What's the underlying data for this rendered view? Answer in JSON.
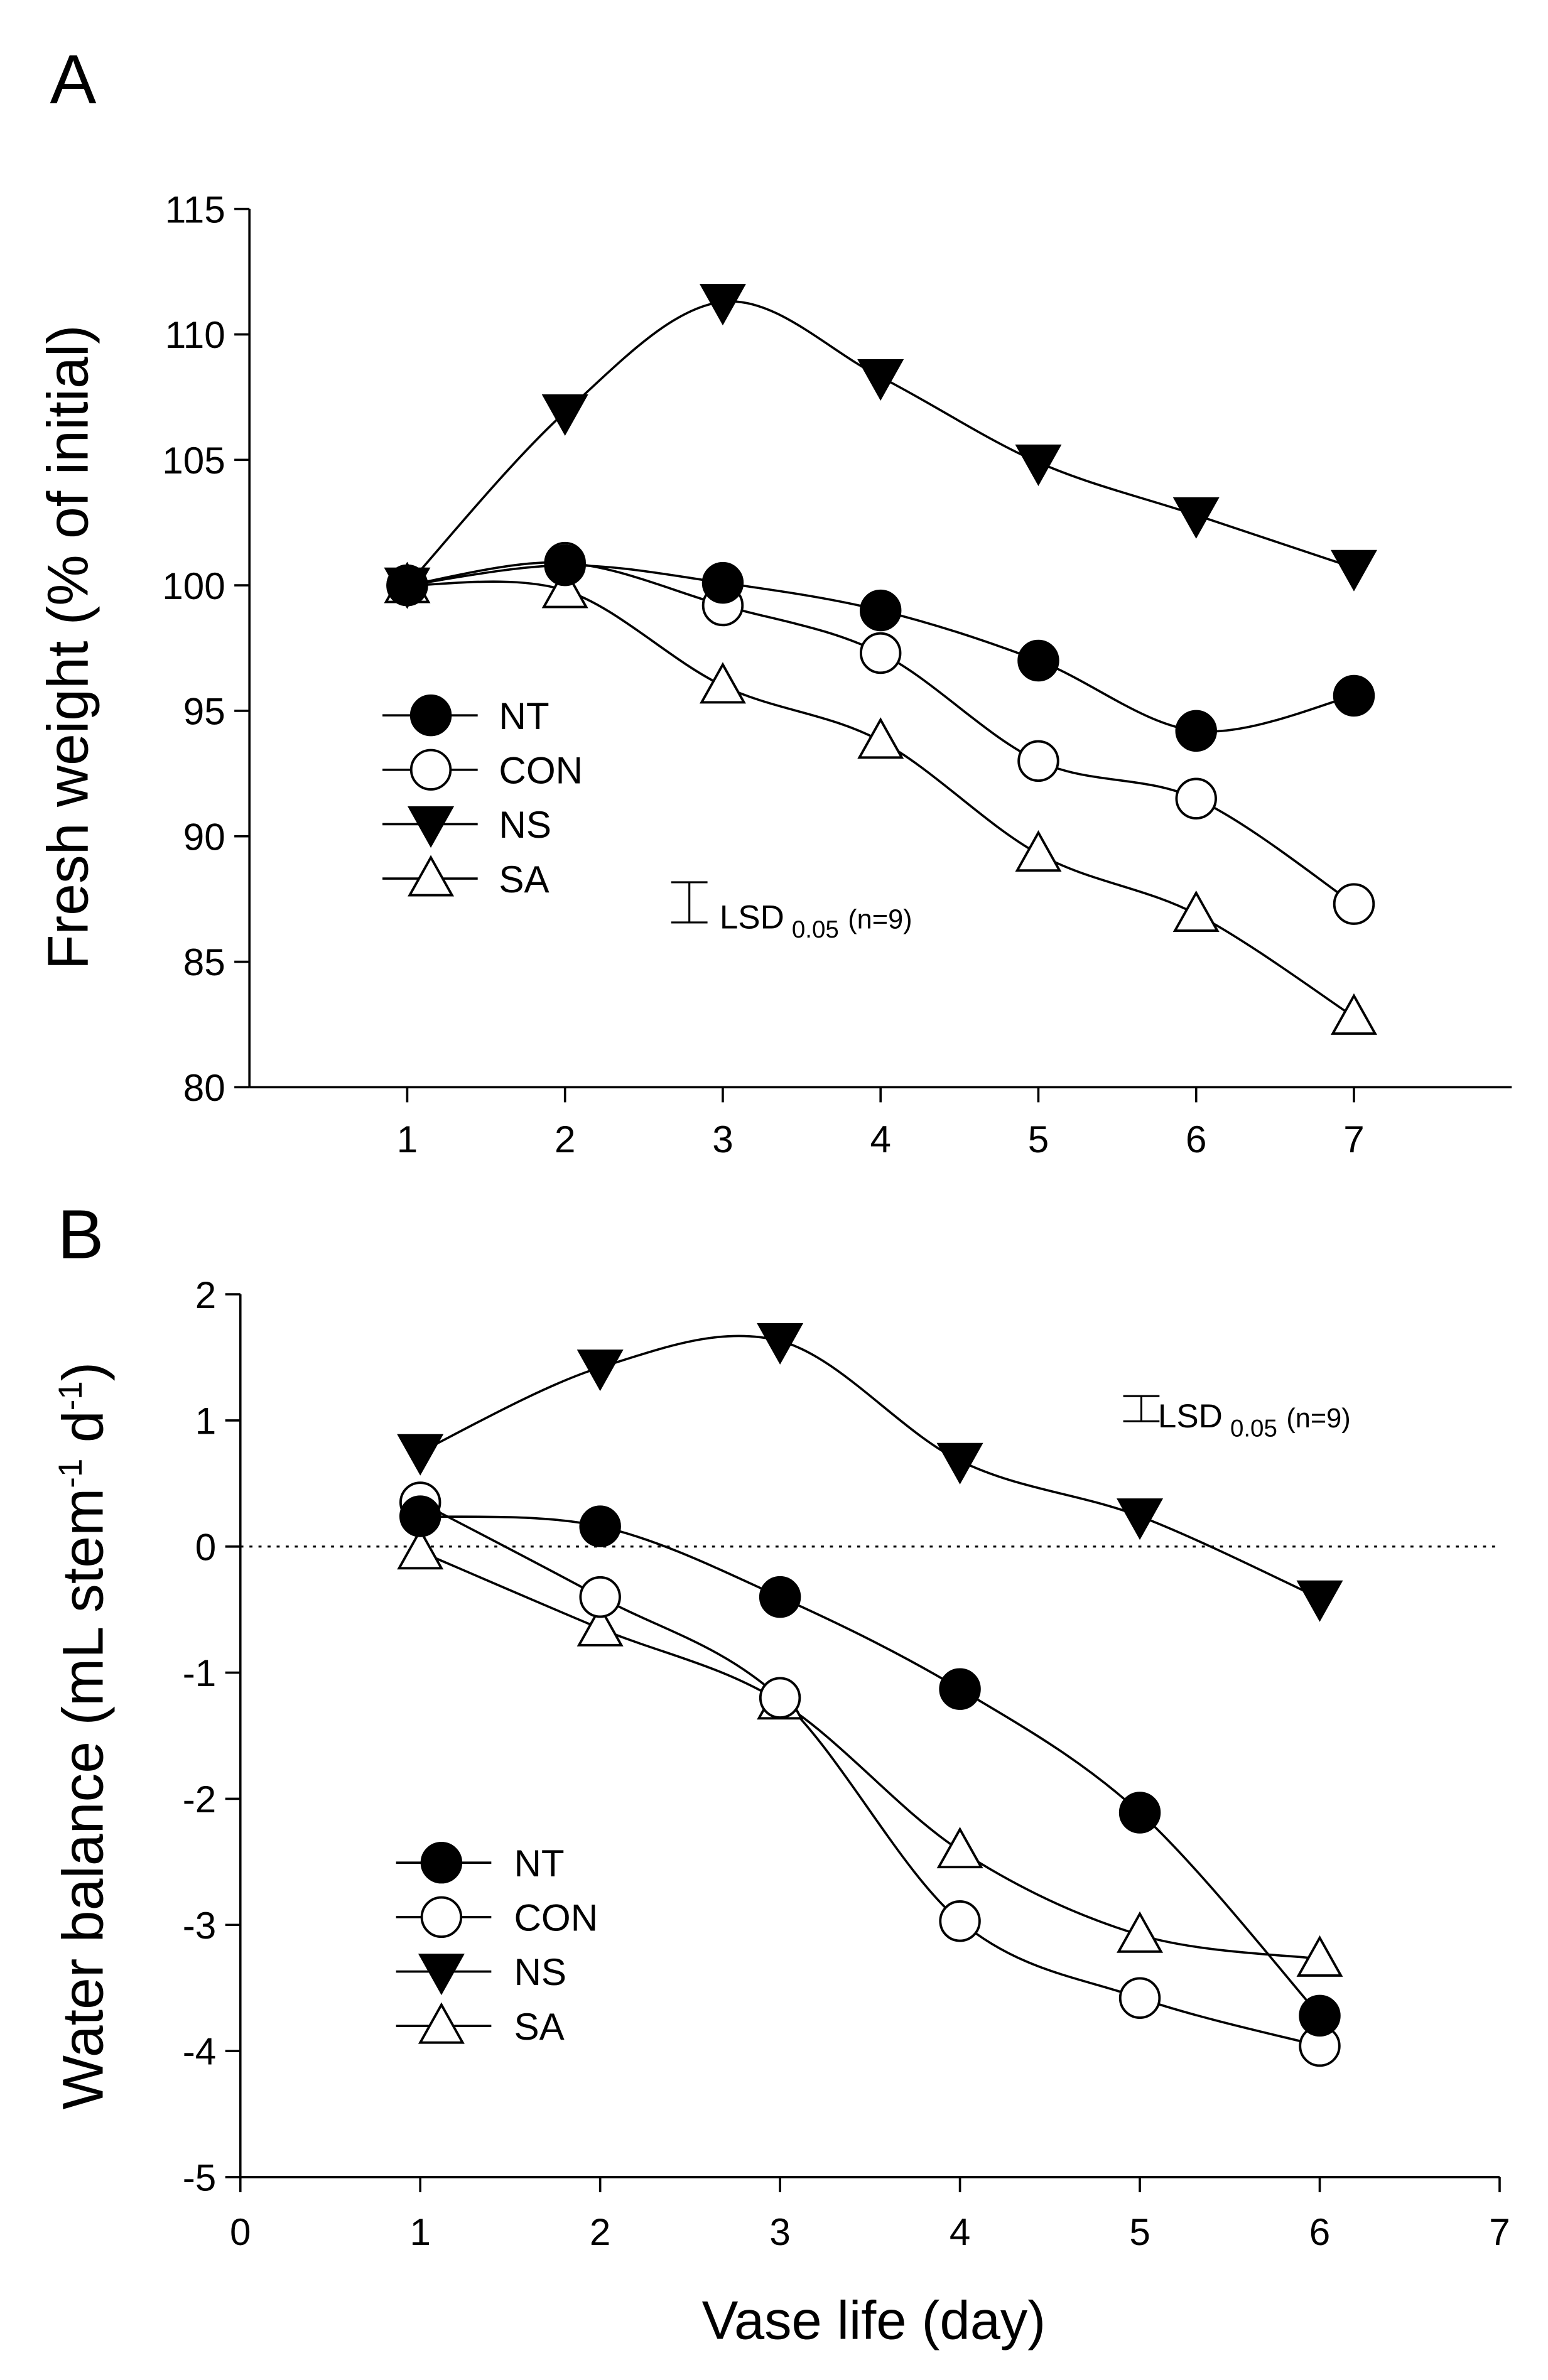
{
  "chart_data": [
    {
      "panel_label": "A",
      "type": "line",
      "title": "",
      "xlabel": "",
      "ylabel": "Fresh weight (% of initial)",
      "x": [
        1,
        2,
        3,
        4,
        5,
        6,
        7
      ],
      "xticks": [
        "1",
        "2",
        "3",
        "4",
        "5",
        "6",
        "7"
      ],
      "xlim": [
        0,
        8
      ],
      "ylim": [
        80,
        115
      ],
      "yticks": [
        "80",
        "85",
        "90",
        "95",
        "100",
        "105",
        "110",
        "115"
      ],
      "grid": false,
      "legend_position": "center-left",
      "lsd": {
        "label": "LSD",
        "subscript": "0.05",
        "suffix": "(n=9)",
        "value": 1.6
      },
      "series": [
        {
          "name": "NT",
          "marker": "filled-circle",
          "values": [
            100,
            100.8,
            100.1,
            99.0,
            97.0,
            94.2,
            95.6
          ]
        },
        {
          "name": "CON",
          "marker": "open-circle",
          "values": [
            100,
            100.9,
            99.2,
            97.3,
            93.0,
            91.5,
            87.3
          ]
        },
        {
          "name": "NS",
          "marker": "filled-triangle-down",
          "values": [
            100,
            106.9,
            111.3,
            108.3,
            104.9,
            102.8,
            100.7
          ]
        },
        {
          "name": "SA",
          "marker": "open-triangle-up",
          "values": [
            100,
            99.8,
            96.0,
            93.8,
            89.3,
            86.9,
            82.8
          ]
        }
      ]
    },
    {
      "panel_label": "B",
      "type": "line",
      "title": "",
      "xlabel": "Vase life (day)",
      "ylabel": "Water balance (mL stem",
      "ylabel_sup1": "-1",
      "ylabel_mid": " d",
      "ylabel_sup2": "-1",
      "ylabel_end": ")",
      "x": [
        1,
        2,
        3,
        4,
        5,
        6
      ],
      "xticks": [
        "0",
        "1",
        "2",
        "3",
        "4",
        "5",
        "6",
        "7"
      ],
      "xlim": [
        0,
        7
      ],
      "ylim": [
        -5,
        2
      ],
      "yticks": [
        "-5",
        "-4",
        "-3",
        "-2",
        "-1",
        "0",
        "1",
        "2"
      ],
      "zero_line": "dotted",
      "grid": false,
      "legend_position": "bottom-left",
      "lsd": {
        "label": "LSD",
        "subscript": "0.05",
        "suffix": "(n=9)",
        "value": 0.2
      },
      "series": [
        {
          "name": "NT",
          "marker": "filled-circle",
          "values": [
            0.24,
            0.16,
            -0.4,
            -1.13,
            -2.11,
            -3.72
          ]
        },
        {
          "name": "CON",
          "marker": "open-circle",
          "values": [
            0.35,
            -0.4,
            -1.2,
            -2.97,
            -3.58,
            -3.96
          ]
        },
        {
          "name": "NS",
          "marker": "filled-triangle-down",
          "values": [
            0.75,
            1.42,
            1.63,
            0.68,
            0.24,
            -0.41
          ]
        },
        {
          "name": "SA",
          "marker": "open-triangle-up",
          "values": [
            -0.04,
            -0.65,
            -1.23,
            -2.41,
            -3.08,
            -3.27
          ]
        }
      ]
    }
  ]
}
